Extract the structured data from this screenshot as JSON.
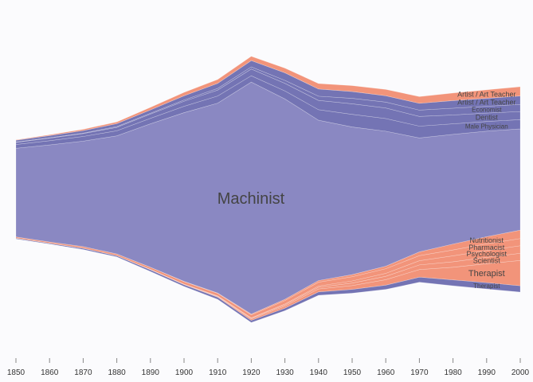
{
  "chart_data": {
    "type": "area",
    "layout": "streamgraph",
    "x": [
      1850,
      1860,
      1870,
      1880,
      1890,
      1900,
      1910,
      1920,
      1930,
      1940,
      1950,
      1960,
      1970,
      1980,
      1990,
      2000
    ],
    "xlim": [
      1850,
      2000
    ],
    "grid": false,
    "legend": "none",
    "colors": {
      "male": "#8a88c2",
      "female": "#f2947a",
      "male_dark": "#7474b4",
      "background": "#fbfbfd"
    },
    "series": [
      {
        "name": "Machinist",
        "group": "male",
        "values": [
          420,
          460,
          500,
          560,
          680,
          800,
          900,
          1100,
          950,
          760,
          700,
          640,
          540,
          520,
          500,
          480
        ]
      },
      {
        "name": "Male Physician",
        "group": "male",
        "values": [
          18,
          20,
          22,
          24,
          26,
          30,
          34,
          30,
          38,
          50,
          60,
          60,
          56,
          50,
          46,
          44
        ]
      },
      {
        "name": "Nutritionist",
        "group": "female",
        "values": [
          0,
          0,
          0,
          0,
          0,
          1,
          2,
          4,
          6,
          8,
          10,
          12,
          18,
          28,
          34,
          40
        ]
      },
      {
        "name": "Pharmacist",
        "group": "female",
        "values": [
          6,
          6,
          8,
          8,
          10,
          12,
          12,
          14,
          16,
          18,
          20,
          22,
          24,
          28,
          32,
          34
        ]
      },
      {
        "name": "Psychologist",
        "group": "female",
        "values": [
          0,
          0,
          0,
          0,
          0,
          0,
          1,
          2,
          4,
          6,
          10,
          14,
          20,
          28,
          32,
          36
        ]
      },
      {
        "name": "Scientist",
        "group": "female",
        "values": [
          0,
          0,
          0,
          0,
          1,
          1,
          2,
          4,
          6,
          8,
          12,
          16,
          22,
          26,
          30,
          34
        ]
      },
      {
        "name": "Therapist",
        "group": "female",
        "values": [
          0,
          0,
          0,
          0,
          1,
          2,
          3,
          6,
          10,
          14,
          18,
          26,
          36,
          60,
          90,
          120
        ]
      },
      {
        "name": "Therapist",
        "group": "male",
        "values": [
          4,
          4,
          6,
          6,
          8,
          8,
          10,
          10,
          12,
          16,
          18,
          20,
          24,
          28,
          30,
          30
        ]
      },
      {
        "name": "Dentist",
        "group": "male",
        "values": [
          10,
          12,
          14,
          16,
          20,
          24,
          28,
          32,
          36,
          44,
          50,
          50,
          46,
          42,
          40,
          38
        ]
      },
      {
        "name": "Economist",
        "group": "male",
        "values": [
          2,
          2,
          2,
          4,
          4,
          6,
          8,
          10,
          14,
          20,
          26,
          28,
          30,
          32,
          32,
          34
        ]
      },
      {
        "name": "Artist / Art Teacher",
        "group": "male",
        "values": [
          8,
          10,
          12,
          14,
          16,
          20,
          24,
          30,
          36,
          34,
          32,
          30,
          32,
          36,
          38,
          40
        ]
      },
      {
        "name": "Artist / Art Teacher",
        "group": "female",
        "values": [
          2,
          4,
          6,
          8,
          12,
          16,
          18,
          20,
          22,
          26,
          28,
          30,
          32,
          36,
          40,
          44
        ]
      }
    ],
    "labels": [
      {
        "text": "Machinist",
        "series": 0,
        "size": 20,
        "color": "#111111"
      },
      {
        "text": "Male Physician",
        "series": 1,
        "size": 8,
        "color": "#5a5a7a"
      },
      {
        "text": "Nutritionist",
        "series": 2,
        "size": 9,
        "color": "#555555"
      },
      {
        "text": "Pharmacist",
        "series": 3,
        "size": 9,
        "color": "#555555"
      },
      {
        "text": "Psychologist",
        "series": 4,
        "size": 9,
        "color": "#555555"
      },
      {
        "text": "Scientist",
        "series": 5,
        "size": 9,
        "color": "#555555"
      },
      {
        "text": "Therapist",
        "series": 6,
        "size": 11,
        "color": "#222222"
      },
      {
        "text": "Therapist",
        "series": 7,
        "size": 8,
        "color": "#555555"
      },
      {
        "text": "Dentist",
        "series": 8,
        "size": 9,
        "color": "#555555"
      },
      {
        "text": "Economist",
        "series": 9,
        "size": 8,
        "color": "#666666"
      },
      {
        "text": "Artist / Art Teacher",
        "series": 10,
        "size": 9,
        "color": "#555555"
      },
      {
        "text": "Artist / Art Teacher",
        "series": 11,
        "size": 9,
        "color": "#555555"
      }
    ]
  }
}
